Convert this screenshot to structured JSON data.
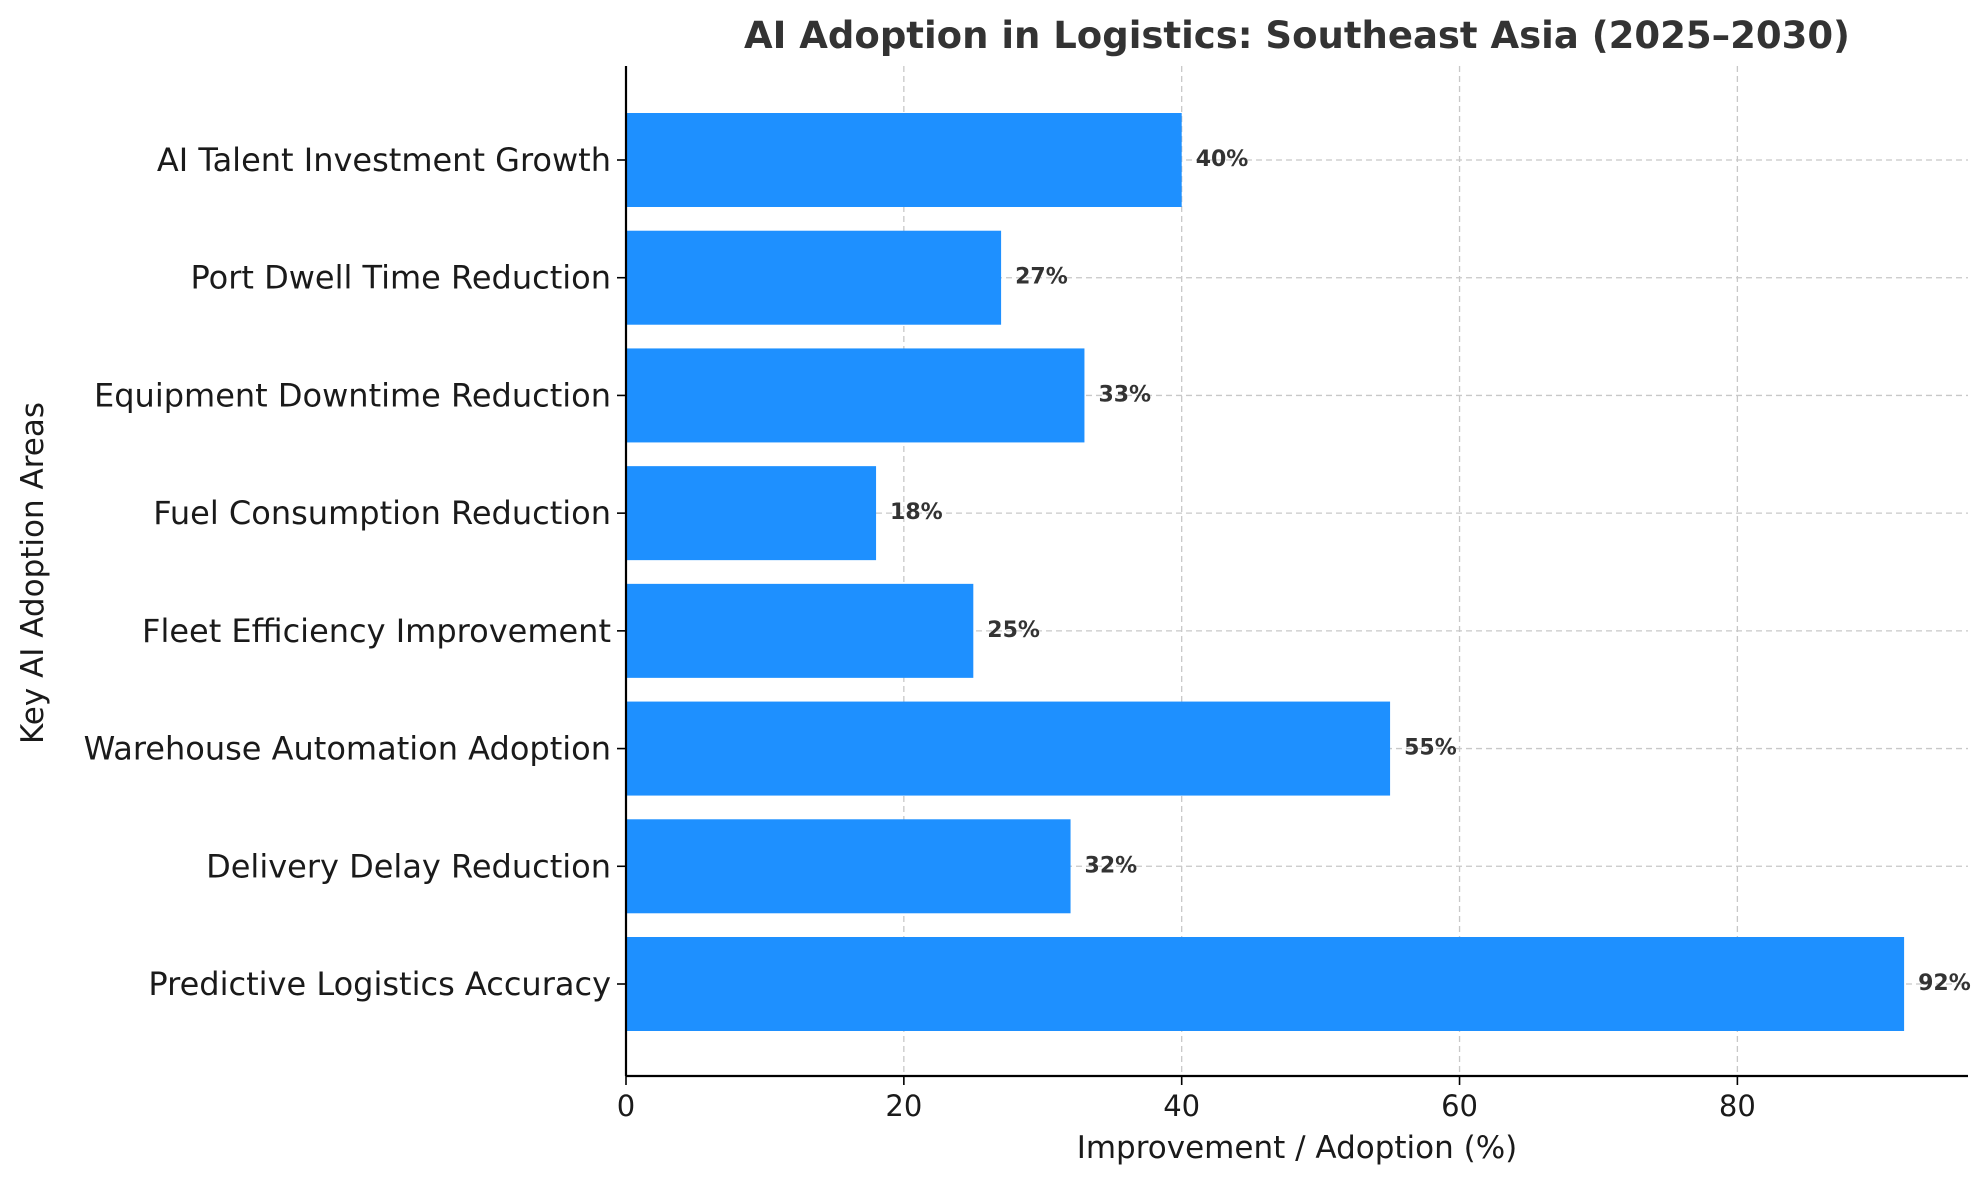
{
  "chart_data": {
    "type": "bar",
    "orientation": "horizontal",
    "title": "AI Adoption in Logistics: Southeast Asia (2025–2030)",
    "xlabel": "Improvement / Adoption (%)",
    "ylabel": "Key AI Adoption Areas",
    "categories": [
      "Predictive Logistics Accuracy",
      "Delivery Delay Reduction",
      "Warehouse Automation Adoption",
      "Fleet Efficiency Improvement",
      "Fuel Consumption Reduction",
      "Equipment Downtime Reduction",
      "Port Dwell Time Reduction",
      "AI Talent Investment Growth"
    ],
    "values": [
      92,
      32,
      55,
      25,
      18,
      33,
      27,
      40
    ],
    "value_labels": [
      "92%",
      "32%",
      "55%",
      "25%",
      "18%",
      "33%",
      "27%",
      "40%"
    ],
    "xlim": [
      0,
      96.6
    ],
    "xticks": [
      0,
      20,
      40,
      60,
      80
    ],
    "xtick_labels": [
      "0",
      "20",
      "40",
      "60",
      "80"
    ],
    "grid": true,
    "grid_style": "dashed",
    "legend": "none",
    "colors": {
      "bar": "#1e90ff",
      "title": "#333333",
      "value_label": "#333333",
      "grid": "#c8c8c8",
      "axis": "#000000",
      "text": "#1a1a1a"
    }
  }
}
